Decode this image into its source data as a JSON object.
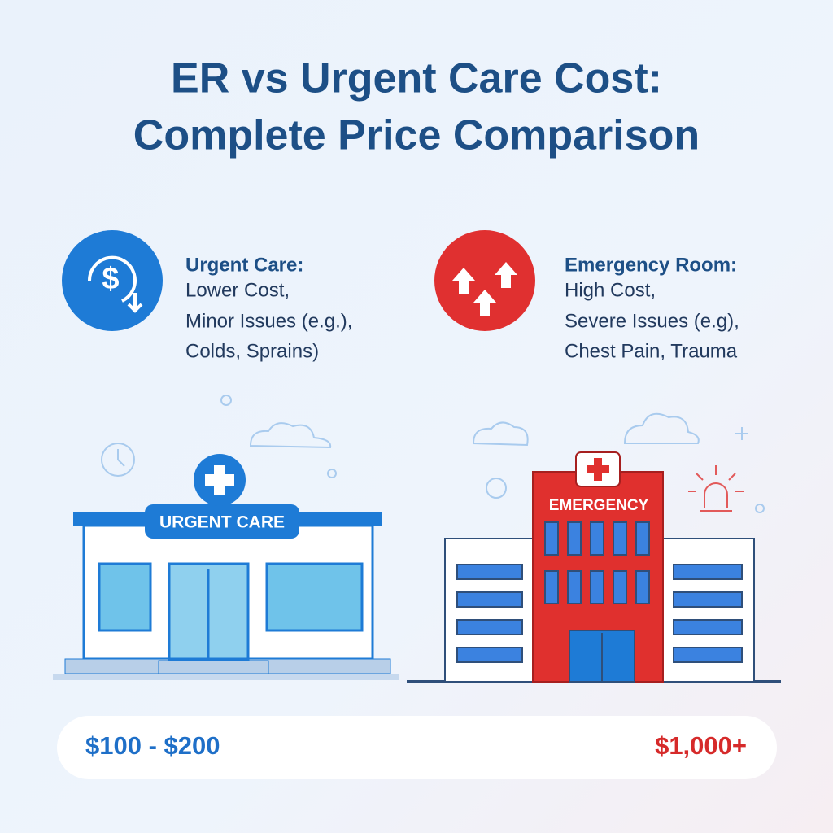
{
  "title": {
    "lines": [
      "ER vs Urgent Care Cost:",
      "Complete Price Comparison"
    ]
  },
  "panels": [
    {
      "icon": "$",
      "heading": "Urgent Care:",
      "lines": [
        "Lower Cost,",
        "Minor Issues (e.g.),",
        "Colds, Sprains)"
      ],
      "sign": "URGENT CARE"
    },
    {
      "heading": "Emergency Room:",
      "lines": [
        "High Cost,",
        "Severe Issues (e.g),",
        "Chest Pain, Trauma"
      ],
      "sign": "EMERGENCY"
    }
  ],
  "price_bar": {
    "low": "$100 - $200",
    "high": "$1,000+"
  }
}
